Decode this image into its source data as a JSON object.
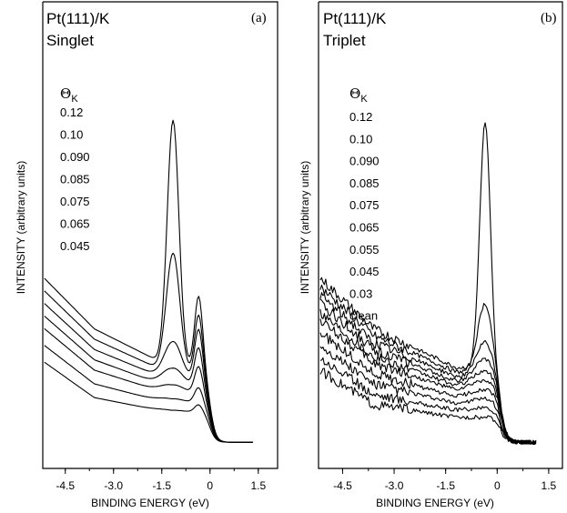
{
  "chart_data": [
    {
      "type": "line",
      "panel_label": "(a)",
      "title_lines": [
        "Pt(111)/K",
        "Singlet"
      ],
      "xlabel": "BINDING ENERGY (eV)",
      "ylabel": "INTENSITY (arbitrary units)",
      "x_ticks": [
        -4.5,
        -3.0,
        -1.5,
        0,
        1.5
      ],
      "x_tick_labels": [
        "-4.5",
        "-3.0",
        "-1.5",
        "0",
        "1.5"
      ],
      "xlim": [
        -5.2,
        2.1
      ],
      "ylim": [
        0,
        100
      ],
      "legend_symbol": "Θ",
      "legend_subscript": "K",
      "legend_values": [
        "0.12",
        "0.10",
        "0.090",
        "0.085",
        "0.075",
        "0.065",
        "0.045"
      ],
      "series": [
        {
          "amp": 100,
          "width": 0.26,
          "shoulder": 18,
          "bg": 33
        },
        {
          "amp": 49,
          "width": 0.3,
          "shoulder": 15,
          "bg": 30
        },
        {
          "amp": 16,
          "width": 0.38,
          "shoulder": 13,
          "bg": 27
        },
        {
          "amp": 8,
          "width": 0.45,
          "shoulder": 10,
          "bg": 24
        },
        {
          "amp": 4,
          "width": 0.5,
          "shoulder": 7,
          "bg": 21
        },
        {
          "amp": 2,
          "width": 0.55,
          "shoulder": 4,
          "bg": 17
        },
        {
          "amp": 1,
          "width": 0.6,
          "shoulder": 2,
          "bg": 13
        }
      ],
      "peak_center": -1.15,
      "shoulder_center": -0.35,
      "fermi_edge": 0.0
    },
    {
      "type": "line",
      "panel_label": "(b)",
      "title_lines": [
        "Pt(111)/K",
        "Triplet"
      ],
      "xlabel": "BINDING ENERGY (eV)",
      "ylabel": "INTENSITY (arbitrary units)",
      "x_ticks": [
        -4.5,
        -3.0,
        -1.5,
        0,
        1.5
      ],
      "x_tick_labels": [
        "-4.5",
        "-3.0",
        "-1.5",
        "0",
        "1.5"
      ],
      "xlim": [
        -5.2,
        1.9
      ],
      "ylim": [
        0,
        100
      ],
      "legend_symbol": "Θ",
      "legend_subscript": "K",
      "legend_values": [
        "0.12",
        "0.10",
        "0.090",
        "0.085",
        "0.075",
        "0.065",
        "0.055",
        "0.045",
        "0.03",
        "clean"
      ],
      "series": [
        {
          "amp": 100,
          "width": 0.22,
          "bg": 33
        },
        {
          "amp": 28,
          "width": 0.3,
          "bg": 31
        },
        {
          "amp": 14,
          "width": 0.36,
          "bg": 29
        },
        {
          "amp": 9,
          "width": 0.42,
          "bg": 27
        },
        {
          "amp": 6,
          "width": 0.48,
          "bg": 25
        },
        {
          "amp": 4,
          "width": 0.52,
          "bg": 23
        },
        {
          "amp": 3,
          "width": 0.56,
          "bg": 20
        },
        {
          "amp": 2,
          "width": 0.6,
          "bg": 17
        },
        {
          "amp": 1,
          "width": 0.65,
          "bg": 14
        },
        {
          "amp": 0,
          "width": 0.7,
          "bg": 11
        }
      ],
      "peak_center": -0.35,
      "fermi_edge": 0.1
    }
  ]
}
